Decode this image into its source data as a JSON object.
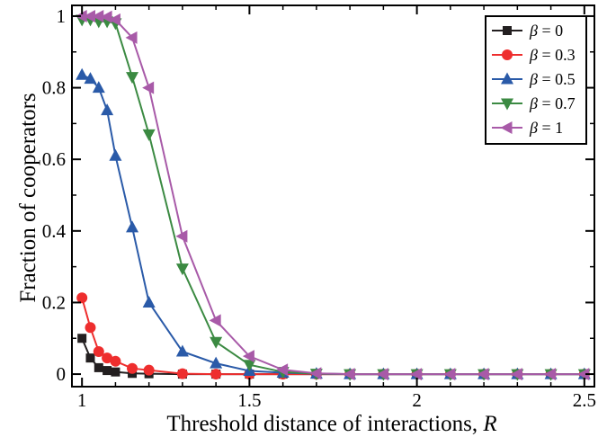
{
  "chart_data": {
    "type": "line",
    "xlabel": "Threshold distance of interactions, ",
    "xlabel_var": "R",
    "ylabel": "Fraction of cooperators",
    "xlim": [
      0.97,
      2.53
    ],
    "ylim": [
      -0.035,
      1.03
    ],
    "xticks": [
      1,
      1.5,
      2,
      2.5
    ],
    "xtick_labels": [
      "1",
      "1.5",
      "2",
      "2.5"
    ],
    "yticks": [
      0,
      0.2,
      0.4,
      0.6,
      0.8,
      1
    ],
    "ytick_labels": [
      "0",
      "0.2",
      "0.4",
      "0.6",
      "0.8",
      "1"
    ],
    "grid": false,
    "legend_position": "top-right",
    "legend_symbol": "β",
    "series": [
      {
        "name": "= 0",
        "color": "#231f20",
        "marker": "square",
        "x": [
          1.0,
          1.025,
          1.05,
          1.075,
          1.1,
          1.15,
          1.2,
          1.3,
          1.4,
          1.5,
          1.6,
          1.7,
          1.8,
          1.9,
          2.0,
          2.1,
          2.2,
          2.3,
          2.4,
          2.5
        ],
        "y": [
          0.1,
          0.045,
          0.018,
          0.01,
          0.006,
          0.002,
          0.001,
          0,
          0,
          0,
          0,
          0,
          0,
          0,
          0,
          0,
          0,
          0,
          0,
          0
        ]
      },
      {
        "name": "= 0.3",
        "color": "#ee2e2e",
        "marker": "circle",
        "x": [
          1.0,
          1.025,
          1.05,
          1.075,
          1.1,
          1.15,
          1.2,
          1.3,
          1.4,
          1.5,
          1.6,
          1.7,
          1.8,
          1.9,
          2.0,
          2.1,
          2.2,
          2.3,
          2.4,
          2.5
        ],
        "y": [
          0.213,
          0.13,
          0.063,
          0.045,
          0.036,
          0.016,
          0.011,
          0.001,
          0,
          0,
          0,
          0,
          0,
          0,
          0,
          0,
          0,
          0,
          0,
          0
        ]
      },
      {
        "name": "= 0.5",
        "color": "#2a5aa8",
        "marker": "triangle-up",
        "x": [
          1.0,
          1.025,
          1.05,
          1.075,
          1.1,
          1.15,
          1.2,
          1.3,
          1.4,
          1.5,
          1.6,
          1.7,
          1.8,
          1.9,
          2.0,
          2.1,
          2.2,
          2.3,
          2.4,
          2.5
        ],
        "y": [
          0.836,
          0.825,
          0.8,
          0.737,
          0.61,
          0.41,
          0.2,
          0.063,
          0.03,
          0.009,
          0.004,
          0.001,
          0,
          0,
          0,
          0,
          0,
          0,
          0,
          0
        ]
      },
      {
        "name": "= 0.7",
        "color": "#3b8a42",
        "marker": "triangle-down",
        "x": [
          1.0,
          1.025,
          1.05,
          1.075,
          1.1,
          1.15,
          1.2,
          1.3,
          1.4,
          1.5,
          1.6,
          1.7,
          1.8,
          1.9,
          2.0,
          2.1,
          2.2,
          2.3,
          2.4,
          2.5
        ],
        "y": [
          0.99,
          0.99,
          0.985,
          0.985,
          0.98,
          0.83,
          0.67,
          0.295,
          0.09,
          0.026,
          0.006,
          0.001,
          0,
          0,
          0,
          0,
          0,
          0,
          0,
          0
        ]
      },
      {
        "name": "= 1",
        "color": "#a85aa8",
        "marker": "triangle-left",
        "x": [
          1.0,
          1.025,
          1.05,
          1.075,
          1.1,
          1.15,
          1.2,
          1.3,
          1.4,
          1.5,
          1.6,
          1.7,
          1.8,
          1.9,
          2.0,
          2.1,
          2.2,
          2.3,
          2.4,
          2.5
        ],
        "y": [
          1.0,
          1.0,
          1.0,
          0.998,
          0.99,
          0.94,
          0.8,
          0.385,
          0.15,
          0.05,
          0.012,
          0.002,
          0,
          0,
          0,
          0,
          0,
          0,
          0,
          0
        ]
      }
    ]
  }
}
